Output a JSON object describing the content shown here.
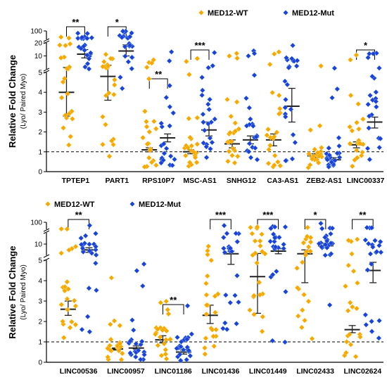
{
  "chart_data": [
    {
      "type": "scatter",
      "ylabel": "Relative Fold Change",
      "ylabel_sub": "(Lyo/ Paired Myo)",
      "y_axis": {
        "segments": [
          [
            0,
            5
          ],
          [
            5,
            20
          ],
          [
            20,
            100
          ]
        ],
        "ticks": [
          "0",
          "1",
          "2",
          "3",
          "4",
          "5",
          "10",
          "20",
          "100"
        ],
        "broken": true
      },
      "reference_line": 1,
      "legend": {
        "placement": "top-right",
        "items": [
          "MED12-WT",
          "MED12-Mut"
        ]
      },
      "colors": {
        "wt": "#F5A800",
        "mut": "#1F3FD9",
        "line": "#222222"
      },
      "categories": [
        "TPTEP1",
        "PART1",
        "RPS10P7",
        "MSC-AS1",
        "SNHG12",
        "CA3-AS1",
        "ZEB2-AS1",
        "LINC00337"
      ],
      "series": [
        {
          "name": "MED12-WT",
          "mean": [
            4.0,
            4.8,
            1.1,
            1.0,
            1.4,
            1.6,
            0.8,
            1.35
          ],
          "sem_low": [
            2.8,
            3.6,
            1.0,
            0.9,
            1.2,
            1.3,
            0.7,
            1.2
          ],
          "sem_high": [
            5.4,
            6.1,
            1.2,
            1.1,
            1.6,
            1.9,
            0.9,
            1.5
          ]
        },
        {
          "name": "MED12-Mut",
          "mean": [
            11.0,
            13.0,
            1.7,
            2.1,
            1.6,
            3.3,
            0.6,
            2.5
          ],
          "sem_low": [
            9.0,
            10.0,
            1.5,
            1.8,
            1.4,
            2.5,
            0.55,
            2.2
          ],
          "sem_high": [
            14.0,
            18.0,
            1.9,
            2.5,
            1.8,
            4.2,
            0.7,
            2.75
          ]
        }
      ],
      "significance": [
        "**",
        "*",
        "**",
        "***",
        "",
        "",
        "",
        "*"
      ]
    },
    {
      "type": "scatter",
      "ylabel": "Relative Fold Change",
      "ylabel_sub": "(Lyo/ Paired Myo)",
      "y_axis": {
        "segments": [
          [
            0,
            5
          ],
          [
            5,
            20
          ],
          [
            20,
            100
          ]
        ],
        "ticks": [
          "0",
          "1",
          "2",
          "3",
          "4",
          "5",
          "10",
          "100"
        ],
        "broken": true
      },
      "reference_line": 1,
      "legend": {
        "placement": "top-left",
        "items": [
          "MED12-WT",
          "MED12-Mut"
        ]
      },
      "categories": [
        "LINC00536",
        "LINC00957",
        "LINC01186",
        "LINC01436",
        "LINC01449",
        "LINC02433",
        "LINC02624"
      ],
      "series": [
        {
          "name": "MED12-WT",
          "mean": [
            2.6,
            0.65,
            1.1,
            2.3,
            4.2,
            5.5,
            1.6
          ],
          "sem_low": [
            2.3,
            0.6,
            0.95,
            1.9,
            2.4,
            3.9,
            1.45
          ],
          "sem_high": [
            3.0,
            0.7,
            1.3,
            2.8,
            5.6,
            7.0,
            1.8
          ]
        },
        {
          "name": "MED12-Mut",
          "mean": [
            7.0,
            0.7,
            0.5,
            5.5,
            6.5,
            9.0,
            4.5
          ],
          "sem_low": [
            6.0,
            0.65,
            0.4,
            4.8,
            5.5,
            8.0,
            3.9
          ],
          "sem_high": [
            8.0,
            0.8,
            0.6,
            6.5,
            7.5,
            10.5,
            4.9
          ]
        }
      ],
      "significance": [
        "**",
        "",
        "**",
        "***",
        "***",
        "*",
        "**"
      ]
    }
  ]
}
